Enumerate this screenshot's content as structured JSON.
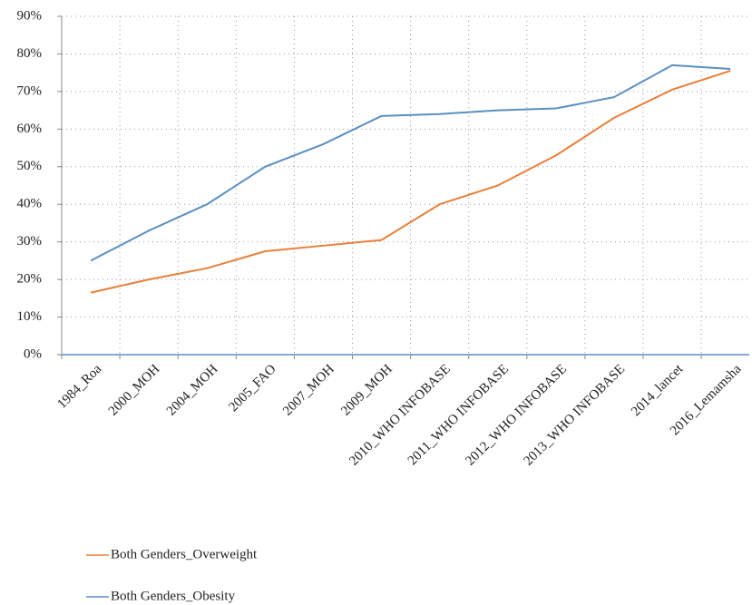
{
  "chart_data": {
    "type": "line",
    "categories": [
      "1984_Roa",
      "2000_MOH",
      "2004_MOH",
      "2005_FAO",
      "2007_MOH",
      "2009_MOH",
      "2010_WHO INFOBASE",
      "2011_WHO INFOBASE",
      "2012_WHO INFOBASE",
      "2013_WHO INFOBASE",
      "2014_lancet",
      "2016_Lemamsha"
    ],
    "series": [
      {
        "name": "Both Genders_Overweight",
        "color": "#e8803a",
        "values": [
          16.5,
          20,
          23,
          27.5,
          29,
          30.5,
          40,
          45,
          53,
          63,
          70.5,
          75.5
        ]
      },
      {
        "name": "Both Genders_Obesity",
        "color": "#5b8fc2",
        "values": [
          25,
          33,
          40,
          50,
          56,
          63.5,
          64,
          65,
          65.5,
          68.5,
          77,
          76
        ]
      }
    ],
    "ylim": [
      0,
      90
    ],
    "yticks": [
      {
        "value": 0,
        "label": "0%"
      },
      {
        "value": 10,
        "label": "10%"
      },
      {
        "value": 20,
        "label": "20%"
      },
      {
        "value": 30,
        "label": "30%"
      },
      {
        "value": 40,
        "label": "40%"
      },
      {
        "value": 50,
        "label": "50%"
      },
      {
        "value": 60,
        "label": "60%"
      },
      {
        "value": 70,
        "label": "70%"
      },
      {
        "value": 80,
        "label": "80%"
      },
      {
        "value": 90,
        "label": "90%"
      }
    ],
    "grid": true
  }
}
